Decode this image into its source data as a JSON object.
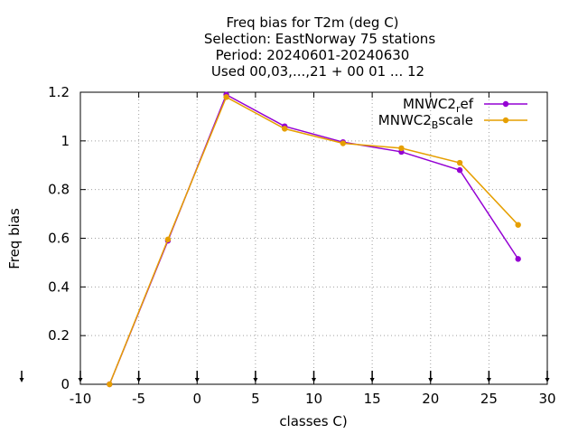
{
  "chart_data": {
    "type": "line",
    "title_lines": [
      "Freq bias  for T2m (deg C)",
      "Selection: EastNorway     75 stations",
      "Period: 20240601-20240630",
      "Used 00,03,...,21 + 00 01 ... 12"
    ],
    "xlabel": "classes C)",
    "ylabel": "Freq bias",
    "xlim": [
      -10,
      30
    ],
    "ylim": [
      0,
      1.2
    ],
    "xticks": [
      -10,
      -5,
      0,
      5,
      10,
      15,
      20,
      25,
      30
    ],
    "yticks": [
      0,
      0.2,
      0.4,
      0.6,
      0.8,
      1,
      1.2
    ],
    "xtick_labels": [
      "-10",
      "-5",
      "0",
      "5",
      "10",
      "15",
      "20",
      "25",
      "30"
    ],
    "ytick_labels": [
      "0",
      "0.2",
      "0.4",
      "0.6",
      "0.8",
      "1",
      "1.2"
    ],
    "grid": true,
    "legend_position": "top-right",
    "x": [
      -7.5,
      -2.5,
      2.5,
      7.5,
      12.5,
      17.5,
      22.5,
      27.5
    ],
    "series": [
      {
        "name": "MNWC2_ref",
        "legend_main": "MNWC2",
        "legend_sub": "r",
        "legend_tail": "ef",
        "color": "#9400d3",
        "values": [
          0.0,
          0.59,
          1.19,
          1.06,
          0.995,
          0.955,
          0.88,
          0.515
        ]
      },
      {
        "name": "MNWC2_Bscale",
        "legend_main": "MNWC2",
        "legend_sub": "B",
        "legend_tail": "scale",
        "color": "#e69f00",
        "values": [
          0.0,
          0.595,
          1.18,
          1.05,
          0.99,
          0.97,
          0.91,
          0.655
        ]
      }
    ]
  }
}
